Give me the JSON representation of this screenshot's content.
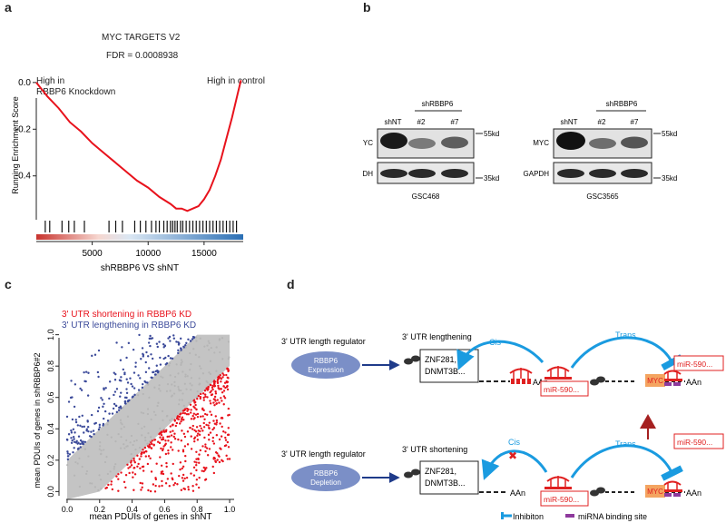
{
  "panels": {
    "a": {
      "label": "a",
      "title": "MYC TARGETS V2",
      "fdr": "FDR = 0.0008938",
      "high_knockdown_l1": "High in",
      "high_knockdown_l2": "RBBP6 Knockdown",
      "high_control": "High in control",
      "ylabel": "Running Enrichment Score",
      "xlabel": "shRBBP6 VS shNT"
    },
    "b": {
      "label": "b",
      "blots": [
        {
          "cell": "GSC468",
          "group": "shRBBP6",
          "lanes": [
            "shNT",
            "#2",
            "#7"
          ],
          "rows": [
            "MYC",
            "GAPDH"
          ],
          "sizes": [
            "55kd",
            "35kd"
          ]
        },
        {
          "cell": "GSC3565",
          "group": "shRBBP6",
          "lanes": [
            "shNT",
            "#2",
            "#7"
          ],
          "rows": [
            "MYC",
            "GAPDH"
          ],
          "sizes": [
            "55kd",
            "35kd"
          ]
        }
      ]
    },
    "c": {
      "label": "c",
      "legend_short": "3' UTR shortening in RBBP6 KD",
      "legend_long": "3' UTR lengthening in RBBP6 KD",
      "ylabel": "mean PDUIs of genes in shRBBP6#2",
      "xlabel": "mean PDUIs of genes in shNT"
    },
    "d": {
      "label": "d",
      "top": {
        "regulator": "3' UTR length regulator",
        "ellipse_l1": "RBBP6",
        "ellipse_l2": "Expression",
        "state": "3' UTR lengthening",
        "gene_l1": "ZNF281,",
        "gene_l2": "DNMT3B...",
        "cis": "Cis",
        "trans": "Trans",
        "mirna": "miR-590...",
        "mirna2": "miR-590...",
        "myc": "MYC",
        "aan1": "AAn",
        "aan2": "AAn"
      },
      "bottom": {
        "regulator": "3' UTR length regulator",
        "ellipse_l1": "RBBP6",
        "ellipse_l2": "Depletion",
        "state": "3' UTR shortening",
        "gene_l1": "ZNF281,",
        "gene_l2": "DNMT3B...",
        "cis": "Cis",
        "trans": "Trans",
        "mirna": "miR-590...",
        "mirna2": "miR-590...",
        "myc": "MYC",
        "aan1": "AAn",
        "aan2": "AAn"
      },
      "legend_inhibition": "Inhibiton",
      "legend_binding": "miRNA binding site"
    }
  },
  "chart_data": [
    {
      "type": "line",
      "title": "MYC TARGETS V2",
      "xlabel": "shRBBP6 VS shNT",
      "ylabel": "Running Enrichment Score",
      "xlim": [
        0,
        18500
      ],
      "ylim": [
        -0.58,
        0.05
      ],
      "x_ticks": [
        5000,
        10000,
        15000
      ],
      "y_ticks": [
        0.0,
        -0.2,
        -0.4
      ],
      "series": [
        {
          "x": [
            0,
            500,
            1000,
            2000,
            3000,
            4000,
            5000,
            6000,
            7000,
            8000,
            9000,
            10000,
            11000,
            12000,
            12500,
            13000,
            13500,
            14000,
            14500,
            15000,
            15500,
            16000,
            16500,
            17000,
            17500,
            18000,
            18300
          ],
          "y": [
            0.0,
            -0.03,
            -0.06,
            -0.11,
            -0.17,
            -0.21,
            -0.26,
            -0.3,
            -0.34,
            -0.38,
            -0.42,
            -0.45,
            -0.49,
            -0.52,
            -0.54,
            -0.54,
            -0.55,
            -0.54,
            -0.53,
            -0.5,
            -0.46,
            -0.4,
            -0.33,
            -0.24,
            -0.15,
            -0.05,
            0.01
          ]
        }
      ],
      "hits": [
        800,
        1200,
        2300,
        2900,
        3400,
        4300,
        6500,
        7100,
        7700,
        8800,
        9300,
        9800,
        10300,
        10700,
        11000,
        11400,
        11700,
        12000,
        12200,
        12400,
        12600,
        12900,
        13100,
        13400,
        13700,
        14000,
        14300,
        14600,
        14900,
        15200,
        15500,
        15800,
        16100,
        16400,
        16700,
        17000,
        17300,
        17600,
        17900
      ]
    },
    {
      "type": "scatter",
      "xlabel": "mean PDUIs of genes in shNT",
      "ylabel": "mean PDUIs of genes in shRBBP6#2",
      "xlim": [
        -0.05,
        1.05
      ],
      "ylim": [
        -0.05,
        1.05
      ],
      "x_ticks": [
        0.0,
        0.2,
        0.4,
        0.6,
        0.8,
        1.0
      ],
      "y_ticks": [
        0.0,
        0.2,
        0.4,
        0.6,
        0.8,
        1.0
      ],
      "series": [
        {
          "name": "3' UTR shortening in RBBP6 KD",
          "color": "#e8121c",
          "rule": "y < x - 0.2"
        },
        {
          "name": "3' UTR lengthening in RBBP6 KD",
          "color": "#3b4a9a",
          "rule": "y > x + 0.2"
        }
      ]
    }
  ],
  "colors": {
    "red": "#e02020",
    "blue": "#1a9be0",
    "navy": "#3b4a9a",
    "grey": "#bdbdbd",
    "ellipse": "#7b8fc7",
    "myc_box": "#f4a460",
    "purple": "#8e3a9d"
  }
}
